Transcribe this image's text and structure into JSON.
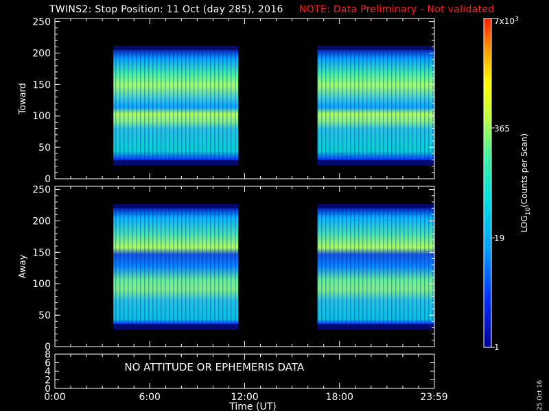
{
  "header": {
    "title": "TWINS2: Stop Position: 11 Oct (day 285), 2016",
    "note": "NOTE: Data Preliminary - Not validated"
  },
  "footer": {
    "date_stamp": "25 Oct 16"
  },
  "colors": {
    "background": "#000000",
    "axis": "#ffffff",
    "note": "#ff2020",
    "colorbar": [
      "#000090",
      "#0030ff",
      "#00a0ff",
      "#00e0e0",
      "#40f0a0",
      "#c0ff40",
      "#ffff00",
      "#ffa000",
      "#ff2000"
    ]
  },
  "chart_data": [
    {
      "type": "heatmap",
      "ylabel": "Toward",
      "ylim": [
        0,
        255
      ],
      "yticks": [
        "0",
        "50",
        "100",
        "150",
        "200",
        "250"
      ],
      "xlim": [
        0,
        24
      ],
      "data_intervals_hours": [
        [
          3.7,
          11.6
        ],
        [
          16.6,
          24.0
        ]
      ],
      "bands": [
        {
          "y_range": [
            30,
            205
          ],
          "level": "medium"
        },
        {
          "y_range": [
            85,
            100
          ],
          "level": "high"
        },
        {
          "y_range": [
            120,
            170
          ],
          "level": "high"
        },
        {
          "y_range": [
            170,
            205
          ],
          "level": "low"
        }
      ]
    },
    {
      "type": "heatmap",
      "ylabel": "Away",
      "ylim": [
        0,
        255
      ],
      "yticks": [
        "0",
        "50",
        "100",
        "150",
        "200",
        "250"
      ],
      "xlim": [
        0,
        24
      ],
      "data_intervals_hours": [
        [
          3.7,
          11.6
        ],
        [
          16.6,
          24.0
        ]
      ],
      "bands": [
        {
          "y_range": [
            36,
            220
          ],
          "level": "medium"
        },
        {
          "y_range": [
            80,
            110
          ],
          "level": "high"
        },
        {
          "y_range": [
            150,
            175
          ],
          "level": "high"
        },
        {
          "y_range": [
            120,
            148
          ],
          "level": "low"
        }
      ]
    },
    {
      "type": "line",
      "ylim": [
        0,
        8
      ],
      "yticks": [
        "0",
        "2",
        "4",
        "6",
        "8"
      ],
      "annotation": "NO ATTITUDE OR EPHEMERIS DATA",
      "xlabel": "Time (UT)",
      "xticks": [
        {
          "hour": 0,
          "label": "0:00"
        },
        {
          "hour": 6,
          "label": "6:00"
        },
        {
          "hour": 12,
          "label": "12:00"
        },
        {
          "hour": 18,
          "label": "18:00"
        },
        {
          "hour": 23.98,
          "label": "23:59"
        }
      ]
    }
  ],
  "colorbar": {
    "label": "LOG10(Counts per Scan)",
    "label_base": "LOG",
    "label_sub": "10",
    "label_rest": "(Counts per Scan)",
    "ticks": [
      {
        "value": "1",
        "frac": 0.0
      },
      {
        "value": "19",
        "frac": 0.333
      },
      {
        "value": "365",
        "frac": 0.667
      },
      {
        "value": "7x10",
        "sup": "3",
        "frac": 1.0
      }
    ]
  }
}
